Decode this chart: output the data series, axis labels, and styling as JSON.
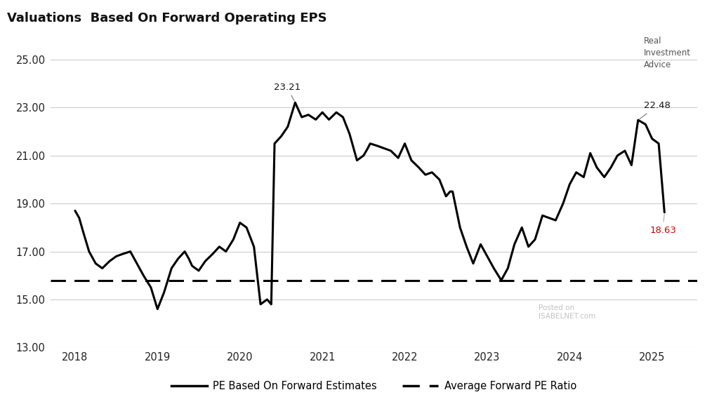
{
  "title": "Valuations  Based On Forward Operating EPS",
  "average_pe": 15.8,
  "peak1_label": "23.21",
  "peak1_x": 2020.67,
  "peak1_y": 23.21,
  "peak2_label": "22.48",
  "peak2_x": 2024.83,
  "peak2_y": 22.48,
  "last_label": "18.63",
  "last_x": 2025.15,
  "last_y": 18.63,
  "ylim": [
    13.0,
    25.8
  ],
  "yticks": [
    13.0,
    15.0,
    17.0,
    19.0,
    21.0,
    23.0,
    25.0
  ],
  "xlim": [
    2017.7,
    2025.55
  ],
  "xticks": [
    2018,
    2019,
    2020,
    2021,
    2022,
    2023,
    2024,
    2025
  ],
  "line_color": "#000000",
  "avg_color": "#000000",
  "last_color": "#cc0000",
  "background_color": "#ffffff",
  "legend_line_label": "PE Based On Forward Estimates",
  "legend_avg_label": "Average Forward PE Ratio",
  "watermark": "Posted on\nISABELNET.com",
  "pe_data": [
    [
      2018.0,
      18.7
    ],
    [
      2018.05,
      18.4
    ],
    [
      2018.1,
      17.8
    ],
    [
      2018.17,
      17.0
    ],
    [
      2018.25,
      16.5
    ],
    [
      2018.33,
      16.3
    ],
    [
      2018.42,
      16.6
    ],
    [
      2018.5,
      16.8
    ],
    [
      2018.58,
      16.9
    ],
    [
      2018.67,
      17.0
    ],
    [
      2018.75,
      16.5
    ],
    [
      2018.83,
      16.0
    ],
    [
      2018.92,
      15.5
    ],
    [
      2019.0,
      14.6
    ],
    [
      2019.08,
      15.3
    ],
    [
      2019.17,
      16.3
    ],
    [
      2019.25,
      16.7
    ],
    [
      2019.33,
      17.0
    ],
    [
      2019.38,
      16.7
    ],
    [
      2019.42,
      16.4
    ],
    [
      2019.5,
      16.2
    ],
    [
      2019.58,
      16.6
    ],
    [
      2019.67,
      16.9
    ],
    [
      2019.75,
      17.2
    ],
    [
      2019.83,
      17.0
    ],
    [
      2019.92,
      17.5
    ],
    [
      2020.0,
      18.2
    ],
    [
      2020.08,
      18.0
    ],
    [
      2020.17,
      17.2
    ],
    [
      2020.25,
      14.8
    ],
    [
      2020.33,
      15.0
    ],
    [
      2020.38,
      14.8
    ],
    [
      2020.42,
      21.5
    ],
    [
      2020.5,
      21.8
    ],
    [
      2020.58,
      22.2
    ],
    [
      2020.67,
      23.21
    ],
    [
      2020.75,
      22.6
    ],
    [
      2020.83,
      22.7
    ],
    [
      2020.92,
      22.5
    ],
    [
      2021.0,
      22.8
    ],
    [
      2021.08,
      22.5
    ],
    [
      2021.17,
      22.8
    ],
    [
      2021.25,
      22.6
    ],
    [
      2021.33,
      21.9
    ],
    [
      2021.42,
      20.8
    ],
    [
      2021.5,
      21.0
    ],
    [
      2021.55,
      21.3
    ],
    [
      2021.58,
      21.5
    ],
    [
      2021.67,
      21.4
    ],
    [
      2021.75,
      21.3
    ],
    [
      2021.83,
      21.2
    ],
    [
      2021.92,
      20.9
    ],
    [
      2022.0,
      21.5
    ],
    [
      2022.08,
      20.8
    ],
    [
      2022.17,
      20.5
    ],
    [
      2022.25,
      20.2
    ],
    [
      2022.33,
      20.3
    ],
    [
      2022.42,
      20.0
    ],
    [
      2022.5,
      19.3
    ],
    [
      2022.55,
      19.5
    ],
    [
      2022.58,
      19.5
    ],
    [
      2022.67,
      18.0
    ],
    [
      2022.75,
      17.2
    ],
    [
      2022.83,
      16.5
    ],
    [
      2022.92,
      17.3
    ],
    [
      2023.0,
      16.8
    ],
    [
      2023.08,
      16.3
    ],
    [
      2023.17,
      15.8
    ],
    [
      2023.25,
      16.3
    ],
    [
      2023.33,
      17.3
    ],
    [
      2023.42,
      18.0
    ],
    [
      2023.5,
      17.2
    ],
    [
      2023.58,
      17.5
    ],
    [
      2023.67,
      18.5
    ],
    [
      2023.75,
      18.4
    ],
    [
      2023.83,
      18.3
    ],
    [
      2023.92,
      19.0
    ],
    [
      2024.0,
      19.8
    ],
    [
      2024.08,
      20.3
    ],
    [
      2024.17,
      20.1
    ],
    [
      2024.25,
      21.1
    ],
    [
      2024.33,
      20.5
    ],
    [
      2024.42,
      20.1
    ],
    [
      2024.5,
      20.5
    ],
    [
      2024.58,
      21.0
    ],
    [
      2024.67,
      21.2
    ],
    [
      2024.75,
      20.6
    ],
    [
      2024.83,
      22.48
    ],
    [
      2024.92,
      22.3
    ],
    [
      2025.0,
      21.7
    ],
    [
      2025.08,
      21.5
    ],
    [
      2025.15,
      18.63
    ]
  ]
}
